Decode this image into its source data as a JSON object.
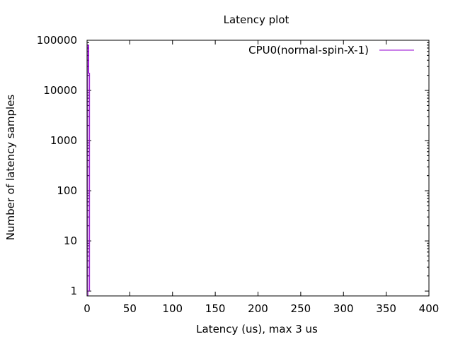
{
  "chart_data": {
    "type": "line",
    "title": "Latency plot",
    "xlabel": "Latency (us), max 3 us",
    "ylabel": "Number of latency samples",
    "xlim": [
      0,
      400
    ],
    "ylim": [
      0.8,
      100000
    ],
    "y_scale": "log",
    "grid": false,
    "legend_position": "top-right",
    "x_ticks": [
      "0",
      "50",
      "100",
      "150",
      "200",
      "250",
      "300",
      "350",
      "400"
    ],
    "y_ticks": [
      "1",
      "10",
      "100",
      "1000",
      "10000",
      "100000"
    ],
    "series": [
      {
        "name": "CPU0(normal-spin-X-1)",
        "color": "#9400d3",
        "x": [
          0,
          1,
          2,
          3
        ],
        "y": [
          0.8,
          80000,
          22000,
          1
        ]
      }
    ]
  }
}
